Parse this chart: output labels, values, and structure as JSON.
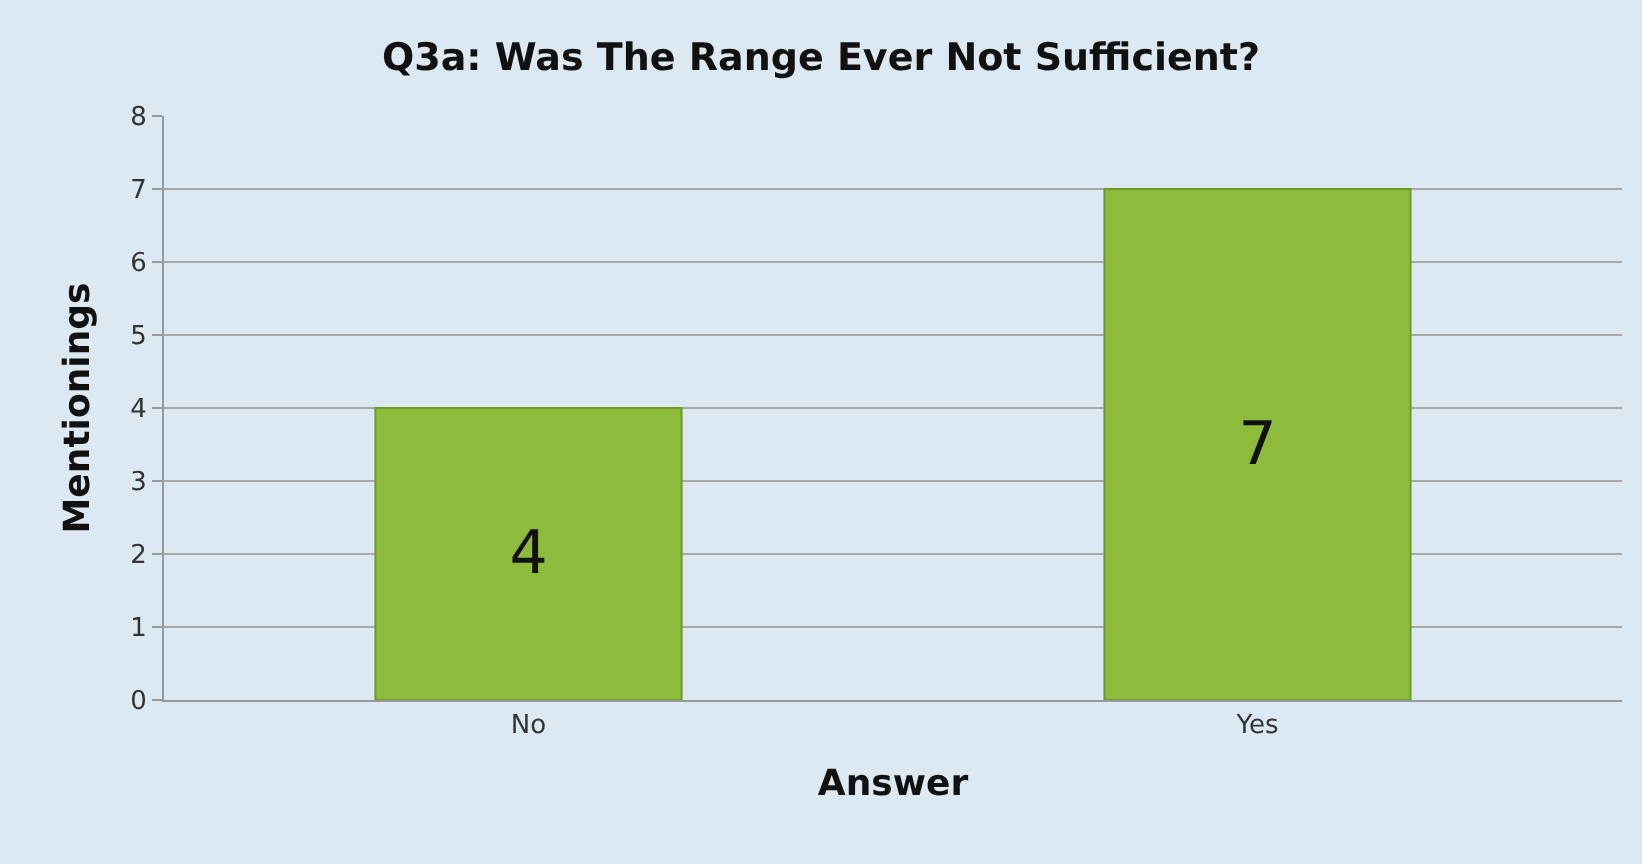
{
  "chart_data": {
    "type": "bar",
    "title": "Q3a: Was The Range Ever Not Sufficient?",
    "xlabel": "Answer",
    "ylabel": "Mentionings",
    "categories": [
      "No",
      "Yes"
    ],
    "values": [
      4,
      7
    ],
    "color": "#8dbb3c",
    "ylim": [
      0,
      8
    ],
    "yticks": [
      0,
      1,
      2,
      3,
      4,
      5,
      6,
      7,
      8
    ],
    "grid": "y",
    "data_labels": true
  }
}
